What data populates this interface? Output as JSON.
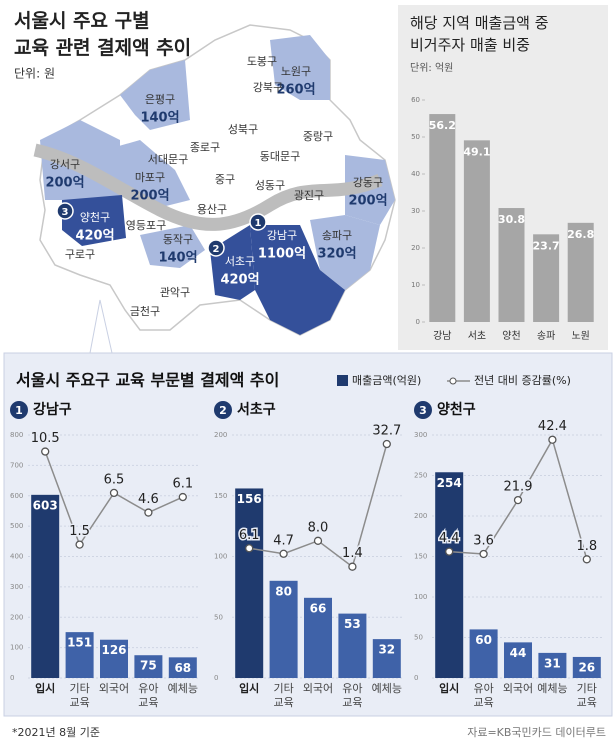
{
  "header": {
    "title": "서울시 주요 구별\n교육 관련 결제액 추이",
    "unit": "단위: 원"
  },
  "map": {
    "districts": [
      {
        "name": "도봉구"
      },
      {
        "name": "노원구",
        "value": "260억"
      },
      {
        "name": "강북구"
      },
      {
        "name": "은평구",
        "value": "140억"
      },
      {
        "name": "성북구"
      },
      {
        "name": "중랑구"
      },
      {
        "name": "종로구"
      },
      {
        "name": "동대문구"
      },
      {
        "name": "서대문구"
      },
      {
        "name": "마포구",
        "value": "200억"
      },
      {
        "name": "강서구",
        "value": "200억"
      },
      {
        "name": "중구"
      },
      {
        "name": "성동구"
      },
      {
        "name": "광진구"
      },
      {
        "name": "강동구",
        "value": "200억"
      },
      {
        "name": "용산구"
      },
      {
        "name": "양천구",
        "value": "420억"
      },
      {
        "name": "영등포구"
      },
      {
        "name": "동작구",
        "value": "140억"
      },
      {
        "name": "강남구",
        "value": "1100억"
      },
      {
        "name": "송파구",
        "value": "320억"
      },
      {
        "name": "구로구"
      },
      {
        "name": "서초구",
        "value": "420억"
      },
      {
        "name": "관악구"
      },
      {
        "name": "금천구"
      }
    ],
    "markers": [
      "1",
      "2",
      "3"
    ]
  },
  "chart_data": [
    {
      "type": "bar",
      "title": "해당 지역 매출금액 중\n비거주자 매출 비중",
      "unit": "단위: 억원",
      "categories": [
        "강남",
        "서초",
        "양천",
        "송파",
        "노원"
      ],
      "values": [
        56.2,
        49.1,
        30.8,
        23.7,
        26.8
      ],
      "color": "#a6a6a6",
      "ylim": [
        0,
        60
      ],
      "yticks": [
        0,
        10,
        20,
        30,
        40,
        50,
        60
      ]
    },
    {
      "type": "combo",
      "number": "1",
      "title": "강남구",
      "categories": [
        "입시",
        "기타\n교육",
        "외국어",
        "유아\n교육",
        "예체능"
      ],
      "series": [
        {
          "name": "매출금액(억원)",
          "type": "bar",
          "colors": [
            "#1f3a6e",
            "#3f62a8",
            "#3f62a8",
            "#3f62a8",
            "#3f62a8"
          ],
          "values": [
            603,
            151,
            126,
            75,
            68
          ]
        },
        {
          "name": "전년 대비 증감률(%)",
          "type": "line",
          "axis": "y2",
          "color": "#8c8c8c",
          "values": [
            10.5,
            1.5,
            6.5,
            4.6,
            6.1
          ]
        }
      ],
      "ylim": [
        0,
        800
      ],
      "yticks": [
        0,
        100,
        200,
        300,
        400,
        500,
        600,
        700,
        800
      ],
      "y2lim": [
        -11.4,
        12.1
      ],
      "grid": true
    },
    {
      "type": "combo",
      "number": "2",
      "title": "서초구",
      "categories": [
        "입시",
        "기타\n교육",
        "외국어",
        "유아\n교육",
        "예체능"
      ],
      "series": [
        {
          "type": "bar",
          "colors": [
            "#1f3a6e",
            "#3f62a8",
            "#3f62a8",
            "#3f62a8",
            "#3f62a8"
          ],
          "values": [
            156,
            80,
            66,
            53,
            32
          ]
        },
        {
          "type": "line",
          "axis": "y2",
          "color": "#8c8c8c",
          "values": [
            6.1,
            4.7,
            8,
            1.4,
            32.7
          ],
          "value_labels": [
            "6.1",
            "4.7",
            "8.0",
            "1.4",
            "32.7"
          ]
        }
      ],
      "ylim": [
        0,
        200
      ],
      "yticks": [
        0,
        50,
        100,
        150,
        200
      ],
      "y2lim": [
        -27,
        35
      ],
      "grid": true
    },
    {
      "type": "combo",
      "number": "3",
      "title": "양천구",
      "categories": [
        "입시",
        "유아\n교육",
        "외국어",
        "예체능",
        "기타\n교육"
      ],
      "series": [
        {
          "type": "bar",
          "colors": [
            "#1f3a6e",
            "#3f62a8",
            "#3f62a8",
            "#3f62a8",
            "#3f62a8"
          ],
          "values": [
            254,
            60,
            44,
            31,
            26
          ]
        },
        {
          "type": "line",
          "axis": "y2",
          "color": "#8c8c8c",
          "values": [
            4.4,
            3.6,
            21.9,
            42.4,
            1.8
          ]
        }
      ],
      "ylim": [
        0,
        300
      ],
      "yticks": [
        0,
        50,
        100,
        150,
        200,
        250,
        300
      ],
      "y2lim": [
        -38.5,
        44
      ],
      "grid": true
    }
  ],
  "section": {
    "title": "서울시 주요구 교육 부문별 결제액 추이"
  },
  "footer": {
    "note": "*2021년 8월 기준",
    "source": "자료=KB국민카드 데이터루트"
  }
}
